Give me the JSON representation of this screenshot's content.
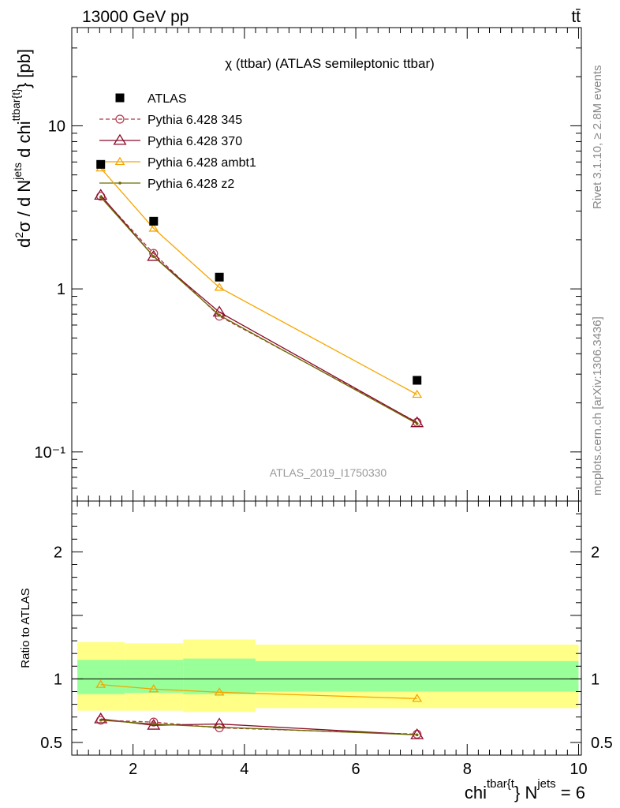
{
  "header": {
    "energy_label": "13000 GeV pp",
    "process_label": "tt̄"
  },
  "side_labels": {
    "rivet": "Rivet 3.1.10, ≥ 2.8M events",
    "mcplots": "mcplots.cern.ch [arXiv:1306.3436]"
  },
  "chart_data": [
    {
      "panel": "main",
      "type": "line",
      "title": "χ (ttbar) (ATLAS semileptonic ttbar)",
      "watermark": "ATLAS_2019_I1750330",
      "ylabel": "d²σ / d N^jets d chi^ttbar{t} [pb]",
      "yscale": "log",
      "ylim": [
        0.05,
        40
      ],
      "xlim": [
        0.9,
        10.05
      ],
      "ytick_labels": [
        "10⁻¹",
        "1",
        "10"
      ],
      "legend_position": "top-left",
      "x": [
        1.42,
        2.37,
        3.55,
        7.1
      ],
      "series": [
        {
          "name": "ATLAS",
          "style": "data-marker",
          "color": "#000000",
          "values": [
            5.8,
            2.6,
            1.18,
            0.275
          ]
        },
        {
          "name": "Pythia 6.428 345",
          "style": "dashed-open-circle",
          "color": "#b2364a",
          "values": [
            3.7,
            1.65,
            0.68,
            0.152
          ]
        },
        {
          "name": "Pythia 6.428 370",
          "style": "solid-open-triangle",
          "color": "#8a0a2a",
          "values": [
            3.75,
            1.58,
            0.72,
            0.151
          ]
        },
        {
          "name": "Pythia 6.428 ambt1",
          "style": "solid-open-triangle",
          "color": "#f5a500",
          "values": [
            5.5,
            2.35,
            1.02,
            0.225
          ]
        },
        {
          "name": "Pythia 6.428 z2",
          "style": "solid-dot",
          "color": "#6b6b00",
          "values": [
            3.65,
            1.58,
            0.69,
            0.149
          ]
        }
      ]
    },
    {
      "panel": "ratio",
      "type": "line",
      "ylabel": "Ratio to ATLAS",
      "ylim": [
        0.4,
        2.4
      ],
      "xlim": [
        0.9,
        10.05
      ],
      "xlabel": "chi^ttbar{t} N^jets = 6",
      "x_ticks": [
        2,
        4,
        6,
        8,
        10
      ],
      "y_ticks": [
        0.5,
        1,
        2
      ],
      "bands": {
        "bin_edges": [
          1.0,
          1.85,
          2.9,
          4.2,
          10.0
        ],
        "outer_low": [
          0.75,
          0.75,
          0.74,
          0.77
        ],
        "outer_high": [
          1.29,
          1.28,
          1.31,
          1.27
        ],
        "inner_low": [
          0.88,
          0.89,
          0.88,
          0.9
        ],
        "inner_high": [
          1.15,
          1.15,
          1.16,
          1.14
        ],
        "outer_color": "#ffff88",
        "inner_color": "#99ff99"
      },
      "x": [
        1.42,
        2.37,
        3.55,
        7.1
      ],
      "series": [
        {
          "name": "Pythia 6.428 345",
          "values": [
            0.675,
            0.66,
            0.615,
            0.565
          ]
        },
        {
          "name": "Pythia 6.428 370",
          "values": [
            0.685,
            0.635,
            0.645,
            0.56
          ]
        },
        {
          "name": "Pythia 6.428 ambt1",
          "values": [
            0.955,
            0.92,
            0.895,
            0.845
          ]
        },
        {
          "name": "Pythia 6.428 z2",
          "values": [
            0.675,
            0.645,
            0.62,
            0.56
          ]
        }
      ]
    }
  ]
}
